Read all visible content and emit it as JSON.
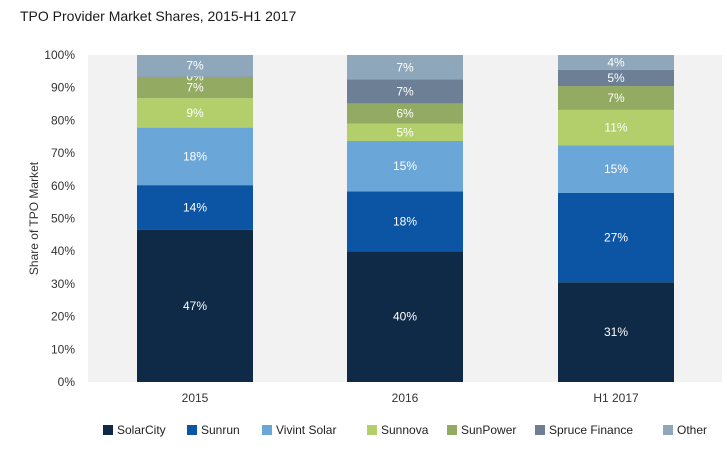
{
  "chart_data": {
    "type": "bar",
    "stacked": true,
    "title": "TPO Provider Market Shares, 2015-H1 2017",
    "ylabel": "Share of TPO Market",
    "xlabel": "",
    "ylim": [
      0,
      100
    ],
    "y_ticks": [
      "0%",
      "10%",
      "20%",
      "30%",
      "40%",
      "50%",
      "60%",
      "70%",
      "80%",
      "90%",
      "100%"
    ],
    "categories": [
      "2015",
      "2016",
      "H1 2017"
    ],
    "legend_position": "bottom",
    "plot_background": "#f2f2f2",
    "series": [
      {
        "name": "SolarCity",
        "color": "#0e2a47",
        "values": [
          46.5,
          40,
          30.5
        ],
        "labels": [
          "47%",
          "40%",
          "31%"
        ]
      },
      {
        "name": "Sunrun",
        "color": "#0b55a4",
        "values": [
          13.7,
          18.3,
          27.3
        ],
        "labels": [
          "14%",
          "18%",
          "27%"
        ]
      },
      {
        "name": "Vivint Solar",
        "color": "#6aa6d8",
        "values": [
          17.6,
          15.4,
          14.6
        ],
        "labels": [
          "18%",
          "15%",
          "15%"
        ]
      },
      {
        "name": "Sunnova",
        "color": "#b2cf6b",
        "values": [
          9.0,
          5.3,
          10.8
        ],
        "labels": [
          "9%",
          "5%",
          "11%"
        ]
      },
      {
        "name": "SunPower",
        "color": "#93aa63",
        "values": [
          6.5,
          6.2,
          7.3
        ],
        "labels": [
          "7%",
          "6%",
          "7%"
        ]
      },
      {
        "name": "Spruce Finance",
        "color": "#6d7f95",
        "values": [
          0.2,
          7.3,
          5.0
        ],
        "labels": [
          "0%",
          "7%",
          "5%"
        ]
      },
      {
        "name": "Other",
        "color": "#8fa7bb",
        "values": [
          6.5,
          7.5,
          4.5
        ],
        "labels": [
          "7%",
          "7%",
          "4%"
        ]
      }
    ]
  }
}
